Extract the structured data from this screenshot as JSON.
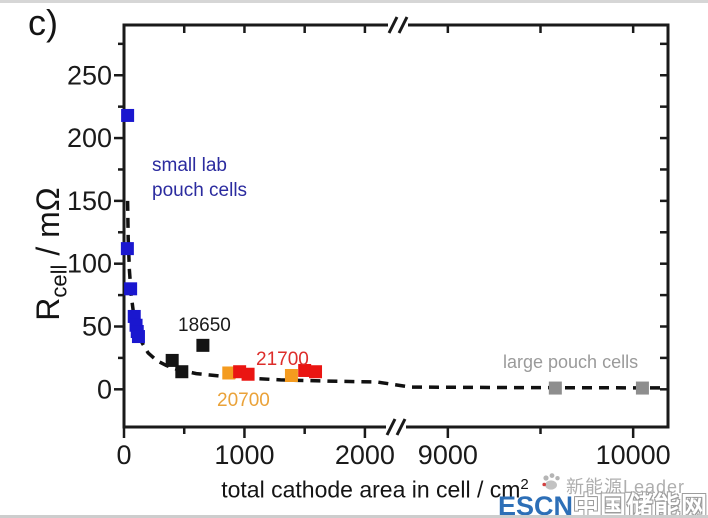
{
  "figure": {
    "panel_label": "c)",
    "background_color": "#ffffff",
    "axis_color": "#1a1a1a"
  },
  "chart_data": {
    "type": "scatter",
    "title": "",
    "xlabel_main": "total cathode area in cell / cm",
    "xlabel_superscript": "2",
    "ylabel_main": "R",
    "ylabel_subscript": "cell",
    "ylabel_rest": " / mΩ",
    "x_axis": {
      "broken": true,
      "break_between": [
        2200,
        8760
      ],
      "segments": [
        {
          "domain": [
            0,
            2200
          ],
          "ticks_major": [
            0,
            1000,
            2000
          ],
          "ticks_minor": [
            500,
            1500
          ],
          "ticks_top": [
            500,
            1000,
            1500,
            2000
          ]
        },
        {
          "domain": [
            8758,
            10188
          ],
          "ticks_major": [
            9000,
            10000
          ],
          "ticks_minor": [
            9500
          ],
          "ticks_top": [
            9000,
            9500,
            10000
          ]
        }
      ],
      "tick_labels": [
        "0",
        "1000",
        "2000",
        "9000",
        "10000"
      ]
    },
    "y_axis": {
      "range": [
        -30,
        290
      ],
      "ticks_major": [
        0,
        50,
        100,
        150,
        200,
        250
      ],
      "minor_step": 25,
      "tick_labels": [
        "0",
        "50",
        "100",
        "150",
        "200",
        "250"
      ]
    },
    "series": [
      {
        "name": "small lab pouch cells",
        "color": "#1a17cf",
        "marker": "square",
        "points": [
          [
            30,
            218
          ],
          [
            28,
            112
          ],
          [
            55,
            80
          ],
          [
            85,
            58
          ],
          [
            100,
            51
          ],
          [
            110,
            46
          ],
          [
            120,
            42
          ]
        ]
      },
      {
        "name": "18650",
        "color": "#141414",
        "marker": "square",
        "points": [
          [
            400,
            23
          ],
          [
            480,
            14
          ],
          [
            655,
            35
          ]
        ]
      },
      {
        "name": "20700",
        "color": "#f49b1f",
        "marker": "square",
        "points": [
          [
            870,
            13
          ],
          [
            1390,
            11
          ]
        ]
      },
      {
        "name": "21700",
        "color": "#ea1512",
        "marker": "square",
        "points": [
          [
            960,
            14
          ],
          [
            1030,
            12
          ],
          [
            1500,
            15
          ],
          [
            1590,
            14
          ]
        ]
      },
      {
        "name": "large pouch cells",
        "color": "#8e8e8e",
        "marker": "square",
        "points": [
          [
            9580,
            1
          ],
          [
            10050,
            1
          ]
        ]
      }
    ],
    "fit_curve": {
      "style": "dashed",
      "color": "#111111",
      "points": [
        [
          30,
          150
        ],
        [
          35,
          120
        ],
        [
          45,
          95
        ],
        [
          60,
          75
        ],
        [
          80,
          60
        ],
        [
          110,
          47
        ],
        [
          150,
          37
        ],
        [
          200,
          29
        ],
        [
          270,
          23
        ],
        [
          350,
          19
        ],
        [
          450,
          15.5
        ],
        [
          600,
          12.5
        ],
        [
          800,
          10.5
        ],
        [
          1000,
          9
        ],
        [
          1300,
          7.5
        ],
        [
          1700,
          6.5
        ],
        [
          2100,
          5.8
        ],
        [
          8800,
          1.8
        ],
        [
          9400,
          1.4
        ],
        [
          10150,
          1.1
        ]
      ]
    },
    "annotations": {
      "small_lab_line1": "small lab",
      "small_lab_line2": "pouch cells",
      "label_18650": "18650",
      "label_21700": "21700",
      "label_20700": "20700",
      "label_large_pouch": "large pouch cells"
    }
  },
  "watermark": {
    "leader_text": "新能源Leader",
    "escn_text": "ESCN",
    "site_text": "中国储能网",
    "escn_color": "#2d6fb7",
    "gray_color": "#aeaeae",
    "logo": "paw-icon"
  }
}
